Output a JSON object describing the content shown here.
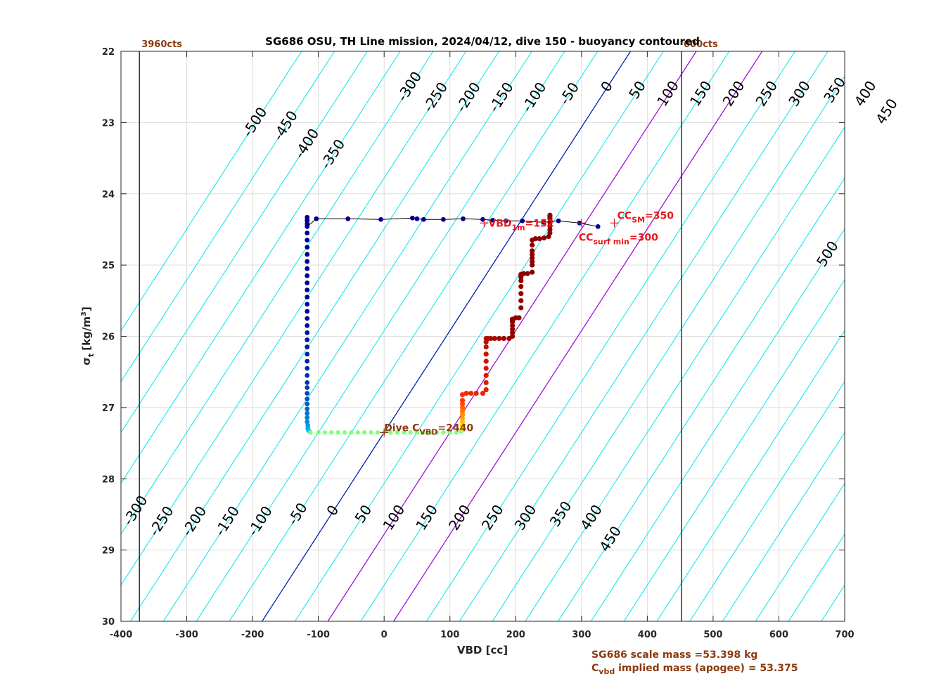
{
  "chart_data": {
    "type": "scatter",
    "title": "SG686 OSU, TH Line mission, 2024/04/12, dive 150 - buoyancy contoured",
    "xlabel": "VBD [cc]",
    "ylabel_main": "σ",
    "ylabel_sub": "t",
    "ylabel_unit": "[kg/m",
    "ylabel_sup": "3",
    "ylabel_close": "]",
    "xlim": [
      -400,
      700
    ],
    "ylim": [
      22,
      30
    ],
    "y_reversed": true,
    "grid": true,
    "xticks": [
      -400,
      -300,
      -200,
      -100,
      0,
      100,
      200,
      300,
      400,
      500,
      600,
      700
    ],
    "yticks": [
      22,
      23,
      24,
      25,
      26,
      27,
      28,
      29,
      30
    ],
    "contours": {
      "slope_cc_per_sigma": -70,
      "pivot_sigma": 27.35,
      "levels": [
        -500,
        -450,
        -400,
        -350,
        -300,
        -250,
        -200,
        -150,
        -100,
        -50,
        0,
        50,
        100,
        150,
        200,
        250,
        300,
        350,
        400,
        450,
        500,
        550,
        600,
        650,
        700,
        750,
        800,
        850,
        900
      ],
      "labels_top": [
        "-500",
        "-450",
        "-400",
        "-350",
        "-300",
        "-250",
        "-200",
        "-150",
        "-100",
        "-50",
        "0",
        "50",
        "100",
        "150",
        "200",
        "250",
        "300",
        "350",
        "400",
        "450"
      ],
      "labels_top_sigma": [
        23.0,
        23.05,
        23.3,
        23.45,
        22.5,
        22.65,
        22.65,
        22.65,
        22.65,
        22.6,
        22.5,
        22.55,
        22.6,
        22.6,
        22.6,
        22.6,
        22.6,
        22.55,
        22.6,
        22.85
      ],
      "labels_bottom": [
        "-300",
        "-250",
        "-200",
        "-150",
        "-100",
        "-50",
        "0",
        "50",
        "100",
        "150",
        "200",
        "250",
        "300",
        "350",
        "400",
        "450"
      ],
      "labels_bottom_sigma": [
        28.45,
        28.6,
        28.6,
        28.6,
        28.6,
        28.5,
        28.45,
        28.5,
        28.55,
        28.55,
        28.55,
        28.55,
        28.55,
        28.5,
        28.55,
        28.85
      ],
      "label_500": "500",
      "label_500_sigma": 24.85,
      "line_color": "#00e5e8",
      "label_color": "#000000"
    },
    "reference_lines": [
      {
        "vbd_at_pivot": 0,
        "slope_cc_per_sigma": -70,
        "color": "#0010a8"
      },
      {
        "vbd_at_pivot": 0,
        "slope_cc_per_sigma": -70,
        "offset": 100,
        "color": "#b000d8"
      },
      {
        "vbd_at_pivot": 0,
        "slope_cc_per_sigma": -70,
        "offset": 200,
        "color": "#b000d8"
      }
    ],
    "vbd_limits": [
      {
        "vbd": -372,
        "label": "3960cts"
      },
      {
        "vbd": 452,
        "label": "600cts"
      }
    ],
    "dive_series": {
      "x": [
        -117,
        -117,
        -117,
        -117,
        -117,
        -117,
        -117,
        -117,
        -117,
        -117,
        -117,
        -117,
        -117,
        -117,
        -117,
        -117,
        -117,
        -117,
        -117,
        -117,
        -117,
        -117,
        -117,
        -117,
        -117,
        -117,
        -117,
        -117,
        -117,
        -117,
        -117,
        -117,
        -116,
        -116,
        -115,
        -113
      ],
      "y": [
        24.38,
        24.45,
        24.55,
        24.65,
        24.75,
        24.85,
        24.95,
        25.05,
        25.15,
        25.25,
        25.35,
        25.45,
        25.55,
        25.65,
        25.75,
        25.85,
        25.95,
        26.05,
        26.15,
        26.25,
        26.35,
        26.45,
        26.55,
        26.65,
        26.72,
        26.8,
        26.88,
        26.95,
        27.02,
        27.08,
        27.14,
        27.2,
        27.25,
        27.29,
        27.32,
        27.34
      ]
    },
    "bottom_series": {
      "x": [
        -112,
        -100,
        -90,
        -80,
        -70,
        -60,
        -50,
        -40,
        -30,
        -20,
        -10,
        0,
        10,
        20,
        30,
        40,
        50,
        60,
        70,
        80,
        90,
        100,
        110,
        117
      ],
      "y": [
        27.35,
        27.35,
        27.35,
        27.35,
        27.35,
        27.35,
        27.35,
        27.35,
        27.35,
        27.35,
        27.35,
        27.35,
        27.35,
        27.35,
        27.35,
        27.35,
        27.35,
        27.35,
        27.35,
        27.35,
        27.35,
        27.35,
        27.35,
        27.33
      ]
    },
    "climb_series": {
      "x": [
        119,
        119,
        119,
        119,
        119,
        119,
        119,
        119,
        119,
        119,
        125,
        132,
        140,
        150,
        155,
        155,
        155,
        155,
        155,
        155,
        155,
        155,
        155,
        158,
        162,
        168,
        175,
        182,
        190,
        195,
        195,
        195,
        195,
        195,
        195,
        195,
        195,
        195,
        200,
        205,
        208,
        208,
        208,
        208,
        208,
        208,
        208,
        208,
        208,
        212,
        218,
        225,
        225,
        225,
        225,
        225,
        225,
        225,
        225,
        230,
        236,
        243,
        250,
        252,
        252,
        252,
        252,
        252,
        252,
        252
      ],
      "y": [
        27.3,
        27.25,
        27.2,
        27.15,
        27.1,
        27.05,
        27.0,
        26.95,
        26.9,
        26.82,
        26.8,
        26.8,
        26.8,
        26.8,
        26.75,
        26.65,
        26.55,
        26.45,
        26.35,
        26.25,
        26.15,
        26.08,
        26.03,
        26.03,
        26.03,
        26.03,
        26.03,
        26.03,
        26.03,
        26.0,
        25.95,
        25.9,
        25.85,
        25.8,
        25.78,
        25.77,
        25.76,
        25.76,
        25.74,
        25.74,
        25.6,
        25.5,
        25.4,
        25.3,
        25.22,
        25.17,
        25.15,
        25.14,
        25.13,
        25.12,
        25.12,
        25.1,
        25.0,
        24.95,
        24.9,
        24.85,
        24.8,
        24.72,
        24.65,
        24.63,
        24.63,
        24.62,
        24.6,
        24.55,
        24.5,
        24.45,
        24.4,
        24.35,
        24.32,
        24.3
      ]
    },
    "surface_series": {
      "x": [
        -117,
        -117,
        -117,
        -117,
        -103,
        -55,
        -5,
        43,
        50,
        60,
        90,
        120,
        150,
        165,
        185,
        210,
        242,
        265,
        297,
        325
      ],
      "y": [
        24.33,
        24.37,
        24.42,
        24.46,
        24.35,
        24.35,
        24.36,
        24.34,
        24.35,
        24.36,
        24.36,
        24.35,
        24.36,
        24.37,
        24.38,
        24.38,
        24.4,
        24.38,
        24.41,
        24.46
      ]
    },
    "markers": [
      {
        "label": "VBD",
        "sub": "1m",
        "suffix": "=152",
        "vbd": 152,
        "sigma": 24.41,
        "color": "#e8171e"
      },
      {
        "label": "CC",
        "sub": "SM",
        "suffix": "=350",
        "vbd": 350,
        "sigma": 24.41,
        "color": "#e8171e"
      },
      {
        "label": "CC",
        "sub": "surf min",
        "suffix": "=300",
        "vbd": 300,
        "sigma": 24.41,
        "color": "#e8171e"
      },
      {
        "label": "Dive C",
        "sub": "VBD",
        "suffix": "=2440",
        "vbd": 0,
        "sigma": 27.35,
        "color": "#8b3a0e"
      }
    ],
    "annotations": {
      "scale_mass": "SG686 scale mass =53.398 kg",
      "implied_prefix": "C",
      "implied_sub": "vbd",
      "implied_suffix": " implied mass (apogee) = 53.375"
    },
    "colors": {
      "surface": "#00008f",
      "dive_top": "#00008f",
      "dive_bottom": "#00c8ff",
      "bottom": "#80ff80",
      "climb_start": "#ffee00",
      "climb_mid": "#ff3000",
      "climb_end": "#900000"
    }
  }
}
